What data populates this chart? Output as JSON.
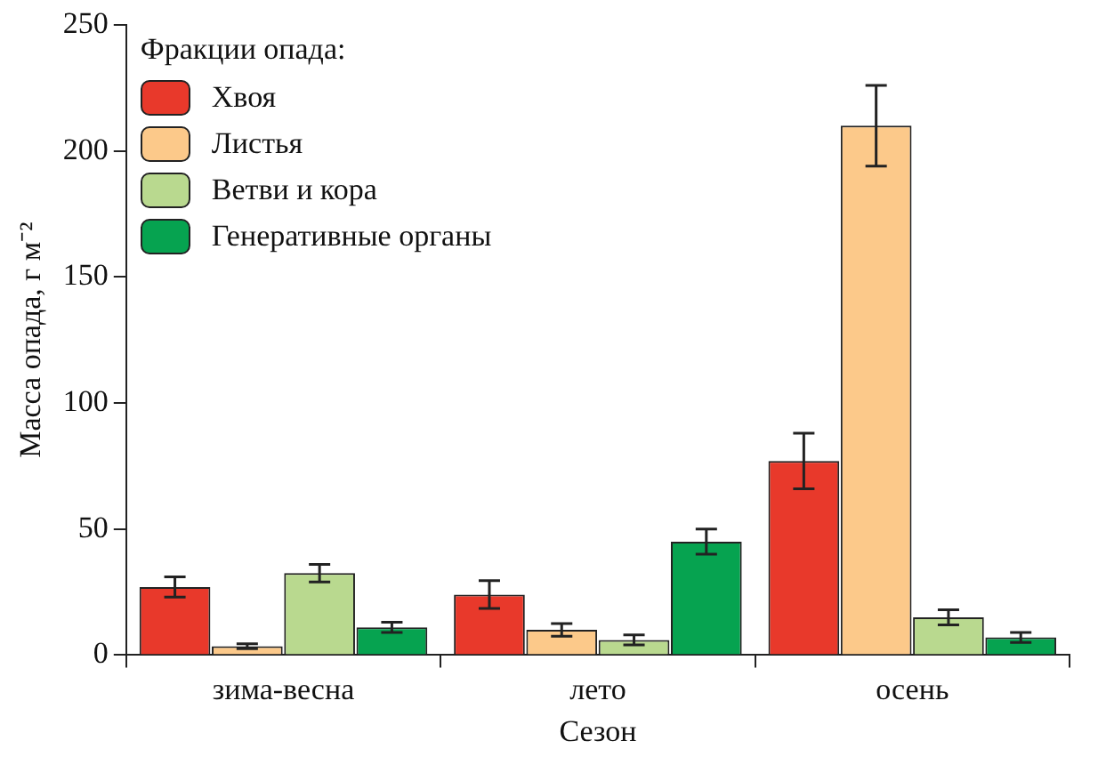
{
  "chart_data": {
    "type": "bar",
    "xlabel": "Сезон",
    "ylabel": "Масса опада, г м⁻²",
    "legend_title": "Фракции опада:",
    "categories": [
      "зима-весна",
      "лето",
      "осень"
    ],
    "series": [
      {
        "name": "Хвоя",
        "color": "#e8392b",
        "values": [
          27,
          24,
          77
        ],
        "errors": [
          4,
          5.5,
          11
        ]
      },
      {
        "name": "Листья",
        "color": "#fcc98a",
        "values": [
          3.5,
          10,
          210
        ],
        "errors": [
          1,
          2.5,
          16
        ]
      },
      {
        "name": "Ветви и кора",
        "color": "#b9d98f",
        "values": [
          32.5,
          6,
          15
        ],
        "errors": [
          3.5,
          2,
          3
        ]
      },
      {
        "name": "Генеративные органы",
        "color": "#06a350",
        "values": [
          11,
          45,
          7
        ],
        "errors": [
          2,
          5,
          2
        ]
      }
    ],
    "ylim": [
      0,
      250
    ],
    "yticks": [
      0,
      50,
      100,
      150,
      200,
      250
    ],
    "grid": false,
    "legend": "top left"
  }
}
